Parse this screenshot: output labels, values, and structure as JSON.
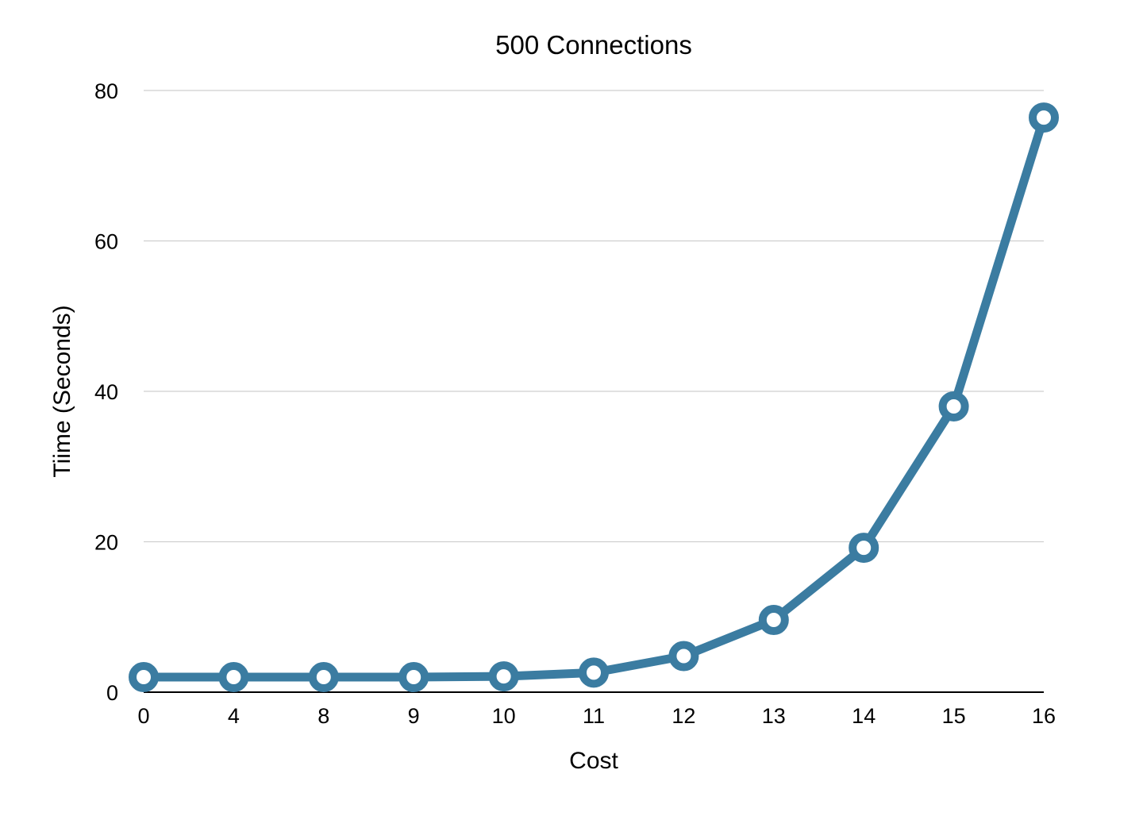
{
  "chart_data": {
    "type": "line",
    "title": "500 Connections",
    "xlabel": "Cost",
    "ylabel": "Tiime (Seconds)",
    "categories": [
      "0",
      "4",
      "8",
      "9",
      "10",
      "11",
      "12",
      "13",
      "14",
      "15",
      "16"
    ],
    "series": [
      {
        "values": [
          2.0,
          2.0,
          2.0,
          2.0,
          2.1,
          2.6,
          4.8,
          9.6,
          19.2,
          38.0,
          76.4
        ]
      }
    ],
    "ylim": [
      0,
      80
    ],
    "yticks": [
      "0",
      "20",
      "40",
      "60",
      "80"
    ],
    "grid": true,
    "legend": "none",
    "colors": {
      "series": "#3b7ca1",
      "grid": "#cfcfcf",
      "axis": "#000000"
    }
  }
}
